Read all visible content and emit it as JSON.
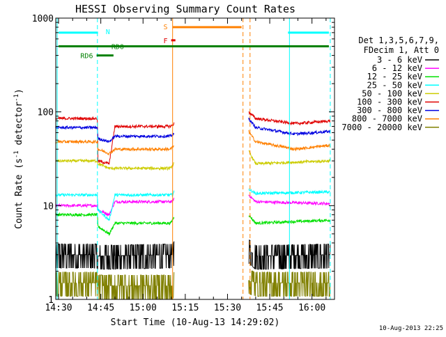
{
  "chart_data": {
    "type": "line",
    "title": "HESSI Observing Summary Count Rates",
    "xlabel": "Start Time (10-Aug-13 14:29:02)",
    "ylabel": "Count Rate (s⁻¹ detector⁻¹)",
    "ylabel_main": "Count Rate (s",
    "ylabel_sup1": "-1",
    "ylabel_mid": " detector",
    "ylabel_sup2": "-1",
    "ylabel_end": ")",
    "yscale": "log",
    "ylim": [
      1,
      1000
    ],
    "xlim_minutes": [
      -1,
      98
    ],
    "y_ticks": [
      {
        "v": 1,
        "label": "1"
      },
      {
        "v": 10,
        "label": "10"
      },
      {
        "v": 100,
        "label": "100"
      },
      {
        "v": 1000,
        "label": "1000"
      }
    ],
    "x_ticks": [
      {
        "m": 0,
        "label": "14:30"
      },
      {
        "m": 15,
        "label": "14:45"
      },
      {
        "m": 30,
        "label": "15:00"
      },
      {
        "m": 45,
        "label": "15:15"
      },
      {
        "m": 60,
        "label": "15:30"
      },
      {
        "m": 75,
        "label": "15:45"
      },
      {
        "m": 90,
        "label": "16:00"
      }
    ],
    "x_minor_every_min": 5,
    "timestamp": "10-Aug-2013 22:25",
    "legend": {
      "header": [
        "Det 1,3,5,6,7,9,",
        "FDecim 1, Att 0"
      ],
      "entries": [
        {
          "label": "3 - 6 keV",
          "color": "#000000"
        },
        {
          "label": "6 - 12 keV",
          "color": "#ff00ff"
        },
        {
          "label": "12 - 25 keV",
          "color": "#00e000"
        },
        {
          "label": "25 - 50 keV",
          "color": "#00ffff"
        },
        {
          "label": "50 - 100 keV",
          "color": "#cccc00"
        },
        {
          "label": "100 - 300 keV",
          "color": "#e00000"
        },
        {
          "label": "300 - 800 keV",
          "color": "#0000e0"
        },
        {
          "label": "800 - 7000 keV",
          "color": "#ff8000"
        },
        {
          "label": "7000 - 20000 keV",
          "color": "#808000"
        }
      ]
    },
    "flags": [
      {
        "label": "N",
        "color": "#00ffff",
        "y": 700,
        "segments": [
          [
            0,
            14
          ],
          [
            81.5,
            96
          ]
        ]
      },
      {
        "label": "RD0",
        "color": "#008000",
        "y": 500,
        "segments": [
          [
            0,
            96
          ]
        ]
      },
      {
        "label": "RD6",
        "color": "#008000",
        "y": 400,
        "segments": [
          [
            13.5,
            19.5
          ]
        ]
      },
      {
        "label": "S",
        "color": "#ff8000",
        "y": 800,
        "segments": [
          [
            40.5,
            65
          ]
        ]
      },
      {
        "label": "F",
        "color": "#e00000",
        "y": 580,
        "segments": [
          [
            40,
            41.5
          ]
        ]
      }
    ],
    "markers": [
      {
        "m": -0.5,
        "color": "#00ffff",
        "style": "solid"
      },
      {
        "m": 13.8,
        "color": "#00ffff",
        "style": "dashed"
      },
      {
        "m": 40.5,
        "color": "#ff8000",
        "style": "solid"
      },
      {
        "m": 65.5,
        "color": "#ff8000",
        "style": "dashed"
      },
      {
        "m": 68,
        "color": "#ff8000",
        "style": "dashed"
      },
      {
        "m": 82,
        "color": "#00ffff",
        "style": "solid"
      },
      {
        "m": 96.5,
        "color": "#00ffff",
        "style": "dashed"
      }
    ],
    "data_gaps_minutes": [
      [
        41,
        67.5
      ]
    ],
    "series": [
      {
        "name": "3 - 6 keV",
        "color": "#000000",
        "x": [
          -1,
          13.8,
          14,
          39.8,
          40.4,
          41,
          67.5,
          70,
          96.5
        ],
        "y": [
          3.0,
          3.0,
          2.9,
          3.0,
          3.0,
          3.2,
          3.4,
          2.9,
          3.0
        ]
      },
      {
        "name": "6 - 12 keV",
        "color": "#ff00ff",
        "x": [
          -1,
          13.8,
          14,
          18,
          20,
          39.8,
          40.4,
          41,
          67.5,
          70,
          96.5
        ],
        "y": [
          10.0,
          10.0,
          9.0,
          8.0,
          11.0,
          11.0,
          11.0,
          12.0,
          13.0,
          11.0,
          10.5
        ]
      },
      {
        "name": "12 - 25 keV",
        "color": "#00e000",
        "x": [
          -1,
          13.8,
          14,
          18,
          20,
          39.8,
          40.4,
          41,
          67.5,
          70,
          96.5
        ],
        "y": [
          8.0,
          8.0,
          6.0,
          5.0,
          6.5,
          6.5,
          7.0,
          7.5,
          8.0,
          6.5,
          7.0
        ]
      },
      {
        "name": "25 - 50 keV",
        "color": "#00ffff",
        "x": [
          -1,
          13.8,
          14,
          18,
          20,
          39.8,
          40.4,
          41,
          67.5,
          70,
          96.5
        ],
        "y": [
          13.0,
          13.0,
          9.0,
          7.0,
          13.0,
          13.0,
          13.0,
          14.0,
          15.0,
          13.5,
          14.0
        ]
      },
      {
        "name": "50 - 100 keV",
        "color": "#cccc00",
        "x": [
          -1,
          13.8,
          14,
          18,
          20,
          39.8,
          40.4,
          41,
          67.5,
          70,
          96.5
        ],
        "y": [
          30.0,
          30.0,
          28.0,
          25.0,
          25.0,
          25.0,
          27.0,
          28.0,
          38.0,
          28.0,
          30.0
        ]
      },
      {
        "name": "100 - 300 keV",
        "color": "#e00000",
        "x": [
          -1,
          13.8,
          14,
          18,
          20,
          39.8,
          40.4,
          41,
          67.5,
          70,
          84,
          96.5
        ],
        "y": [
          85.0,
          85.0,
          30.0,
          28.0,
          70.0,
          70.0,
          72.0,
          75.0,
          100.0,
          85.0,
          75.0,
          80.0
        ]
      },
      {
        "name": "300 - 800 keV",
        "color": "#0000e0",
        "x": [
          -1,
          13.8,
          14,
          18,
          20,
          39.8,
          40.4,
          41,
          67.5,
          70,
          84,
          96.5
        ],
        "y": [
          68.0,
          68.0,
          52.0,
          48.0,
          55.0,
          55.0,
          57.0,
          58.0,
          85.0,
          68.0,
          58.0,
          62.0
        ]
      },
      {
        "name": "800 - 7000 keV",
        "color": "#ff8000",
        "x": [
          -1,
          13.8,
          14,
          18,
          20,
          39.8,
          40.4,
          41,
          67.5,
          70,
          84,
          96.5
        ],
        "y": [
          48.0,
          48.0,
          40.0,
          36.0,
          40.0,
          40.0,
          42.0,
          43.0,
          62.0,
          48.0,
          40.0,
          44.0
        ]
      },
      {
        "name": "7000 - 20000 keV",
        "color": "#808000",
        "x": [
          -1,
          13.8,
          14,
          39.8,
          40.4,
          41,
          67.5,
          70,
          96.5
        ],
        "y": [
          1.5,
          1.5,
          1.4,
          1.4,
          1.4,
          1.5,
          1.6,
          1.5,
          1.5
        ]
      }
    ]
  }
}
